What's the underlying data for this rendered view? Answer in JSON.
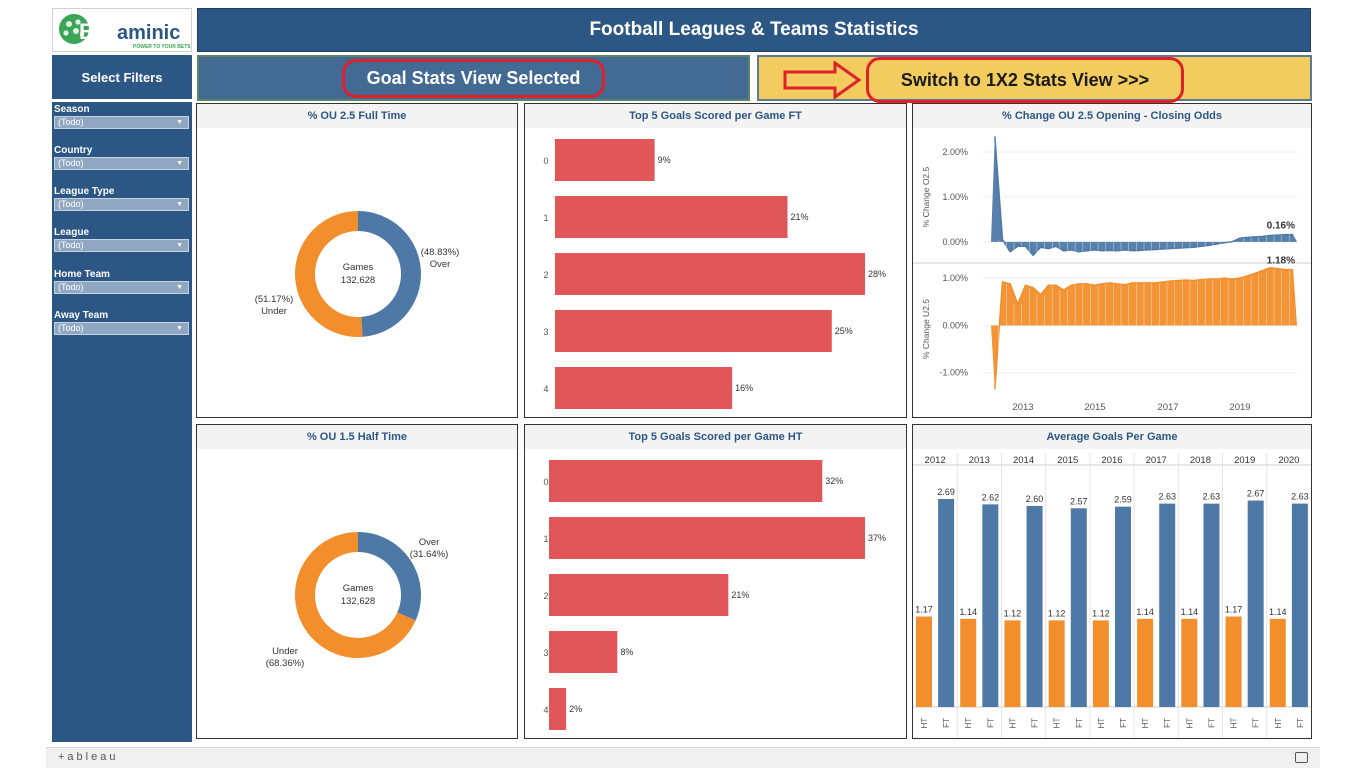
{
  "logo": {
    "brand_prefix": "Bet",
    "brand_suffix": "aminic",
    "tagline": "POWER TO YOUR BETS"
  },
  "header": {
    "title": "Football Leagues & Teams Statistics"
  },
  "filters": {
    "heading": "Select Filters",
    "items": [
      {
        "label": "Season",
        "value": "(Todo)"
      },
      {
        "label": "Country",
        "value": "(Todo)"
      },
      {
        "label": "League Type",
        "value": "(Todo)"
      },
      {
        "label": "League",
        "value": "(Todo)"
      },
      {
        "label": "Home Team",
        "value": "(Todo)"
      },
      {
        "label": "Away Team",
        "value": "(Todo)"
      }
    ]
  },
  "views": {
    "current_label": "Goal Stats View Selected",
    "switch_label": "Switch to 1X2 Stats View >>>"
  },
  "colors": {
    "navy": "#2c5784",
    "orange": "#f28e2b",
    "blue": "#4e79a7",
    "red": "#e15759",
    "yellow": "#f2cc5e",
    "highlight": "#e0202a"
  },
  "footer": {
    "brand": "+ableau",
    "fullscreen_icon": "fullscreen-icon"
  },
  "chart_data": [
    {
      "id": "ou25",
      "type": "pie",
      "title": "% OU 2.5 Full Time",
      "center_label": "Games",
      "center_value": "132,628",
      "slices": [
        {
          "name": "Over",
          "pct_label": "(48.83%)",
          "value": 48.83,
          "color": "#4e79a7"
        },
        {
          "name": "Under",
          "pct_label": "(51.17%)",
          "value": 51.17,
          "color": "#f28e2b"
        }
      ]
    },
    {
      "id": "top5ft",
      "type": "bar",
      "title": "Top 5 Goals Scored per Game FT",
      "categories": [
        "0",
        "1",
        "2",
        "3",
        "4"
      ],
      "values": [
        9,
        21,
        28,
        25,
        16
      ],
      "labels": [
        "9%",
        "21%",
        "28%",
        "25%",
        "16%"
      ],
      "xlim": [
        0,
        28
      ]
    },
    {
      "id": "oc",
      "type": "area",
      "title": "% Change OU 2.5 Opening - Closing Odds",
      "x_ticks": [
        "2013",
        "2015",
        "2017",
        "2019"
      ],
      "top": {
        "ylabel": "% Change O2.5",
        "ticks": [
          "2.00%",
          "1.00%",
          "0.00%"
        ],
        "ylim": [
          -0.45,
          2.45
        ],
        "last_label": "0.16%",
        "values": [
          2.35,
          0.05,
          -0.22,
          -0.1,
          -0.1,
          -0.3,
          -0.12,
          -0.15,
          -0.1,
          -0.2,
          -0.18,
          -0.22,
          -0.2,
          -0.18,
          -0.2,
          -0.19,
          -0.2,
          -0.18,
          -0.2,
          -0.19,
          -0.18,
          -0.17,
          -0.16,
          -0.15,
          -0.14,
          -0.13,
          -0.12,
          -0.1,
          -0.08,
          -0.05,
          -0.02,
          0.0,
          0.08,
          0.1,
          0.11,
          0.12,
          0.14,
          0.15,
          0.16,
          0.16
        ]
      },
      "bottom": {
        "ylabel": "% Change U2.5",
        "ticks": [
          "1.00%",
          "0.00%",
          "-1.00%"
        ],
        "ylim": [
          -1.45,
          1.3
        ],
        "last_label": "1.18%",
        "values": [
          -1.35,
          0.92,
          0.88,
          0.45,
          0.85,
          0.8,
          0.65,
          0.85,
          0.85,
          0.75,
          0.85,
          0.88,
          0.88,
          0.85,
          0.88,
          0.9,
          0.88,
          0.86,
          0.9,
          0.9,
          0.9,
          0.9,
          0.92,
          0.94,
          0.95,
          0.96,
          0.95,
          0.97,
          0.98,
          0.98,
          1.0,
          0.98,
          1.0,
          1.05,
          1.1,
          1.16,
          1.22,
          1.2,
          1.18,
          1.18
        ]
      },
      "colors": {
        "top": "#4e79a7",
        "bottom": "#f28e2b"
      }
    },
    {
      "id": "ou15",
      "type": "pie",
      "title": "% OU 1.5 Half Time",
      "center_label": "Games",
      "center_value": "132,628",
      "slices": [
        {
          "name": "Over",
          "pct_label": "(31.64%)",
          "value": 31.64,
          "color": "#4e79a7"
        },
        {
          "name": "Under",
          "pct_label": "(68.36%)",
          "value": 68.36,
          "color": "#f28e2b"
        }
      ]
    },
    {
      "id": "top5ht",
      "type": "bar",
      "title": "Top 5 Goals Scored per Game HT",
      "categories": [
        "0",
        "1",
        "2",
        "3",
        "4"
      ],
      "values": [
        32,
        37,
        21,
        8,
        2
      ],
      "labels": [
        "32%",
        "37%",
        "21%",
        "8%",
        "2%"
      ],
      "xlim": [
        0,
        37
      ]
    },
    {
      "id": "avg",
      "type": "bar",
      "title": "Average Goals Per Game",
      "categories": [
        "2012",
        "2013",
        "2014",
        "2015",
        "2016",
        "2017",
        "2018",
        "2019",
        "2020"
      ],
      "sub_categories": [
        "HT",
        "FT"
      ],
      "series": [
        {
          "name": "HT",
          "values": [
            1.17,
            1.14,
            1.12,
            1.12,
            1.12,
            1.14,
            1.14,
            1.17,
            1.14
          ],
          "labels": [
            "1.17",
            "1.14",
            "1.12",
            "1.12",
            "1.12",
            "1.14",
            "1.14",
            "1.17",
            "1.14"
          ],
          "color": "#f28e2b"
        },
        {
          "name": "FT",
          "values": [
            2.69,
            2.62,
            2.6,
            2.57,
            2.59,
            2.63,
            2.63,
            2.67,
            2.63
          ],
          "labels": [
            "2.69",
            "2.62",
            "2.60",
            "2.57",
            "2.59",
            "2.63",
            "2.63",
            "2.67",
            "2.63"
          ],
          "color": "#4e79a7"
        }
      ],
      "ylim": [
        0,
        3.0
      ]
    }
  ]
}
